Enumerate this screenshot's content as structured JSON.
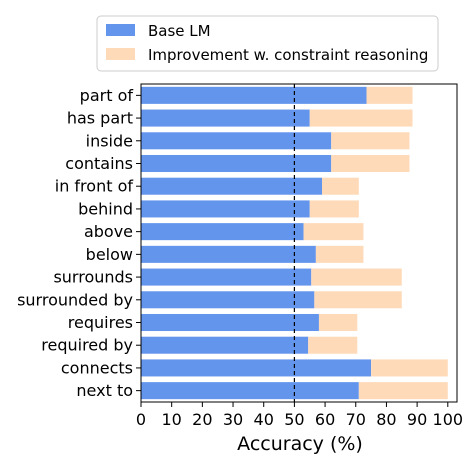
{
  "chart_data": {
    "type": "bar",
    "orientation": "horizontal",
    "stacked": true,
    "categories": [
      "part of",
      "has part",
      "inside",
      "contains",
      "in front of",
      "behind",
      "above",
      "below",
      "surrounds",
      "surrounded by",
      "requires",
      "required by",
      "connects",
      "next to"
    ],
    "series": [
      {
        "name": "Base LM",
        "color": "#6495ed",
        "values": [
          73.5,
          55,
          62,
          62,
          59,
          55,
          53,
          57,
          55.5,
          56.5,
          58,
          54.5,
          75,
          71
        ]
      },
      {
        "name": "Improvement w. constraint reasoning",
        "color": "#ffdab9",
        "values": [
          15,
          33.5,
          25.5,
          25.5,
          12,
          16,
          19.5,
          15.5,
          29.5,
          28.5,
          12.5,
          16,
          25,
          29
        ]
      }
    ],
    "reference_line": {
      "x": 50,
      "style": "dashed",
      "color": "#000000"
    },
    "xlabel": "Accuracy (%)",
    "ylabel": "",
    "xlim": [
      0,
      103
    ],
    "xticks": [
      "0",
      "10",
      "20",
      "30",
      "40",
      "50",
      "60",
      "70",
      "80",
      "90",
      "100"
    ],
    "xtick_values": [
      0,
      10,
      20,
      30,
      40,
      50,
      60,
      70,
      80,
      90,
      100
    ],
    "legend_placement": "top",
    "grid": false
  }
}
